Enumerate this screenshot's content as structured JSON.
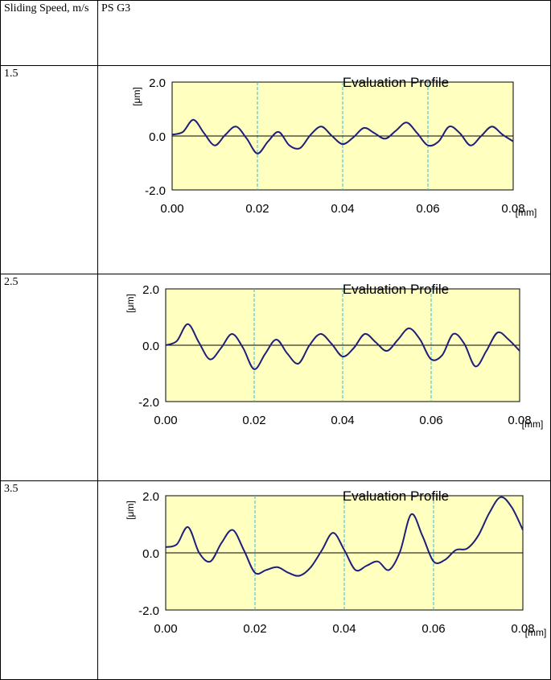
{
  "table": {
    "header_left": "Sliding Speed, m/s",
    "header_right": "PS G3",
    "rows": [
      {
        "speed": "1.5"
      },
      {
        "speed": "2.5"
      },
      {
        "speed": "3.5"
      }
    ]
  },
  "chart_data": [
    {
      "type": "line",
      "title": "Evaluation Profile",
      "ylabel": "[μm]",
      "xlabel": "[mm]",
      "xlim": [
        0,
        0.08
      ],
      "ylim": [
        -2.0,
        2.0
      ],
      "xticks": [
        "0.00",
        "0.02",
        "0.04",
        "0.06",
        "0.08"
      ],
      "yticks": [
        "2.0",
        "0.0",
        "-2.0"
      ],
      "gridlines_x": [
        0.02,
        0.04,
        0.06
      ],
      "series": [
        {
          "color": "#1f1f7a",
          "x": [
            0.0,
            0.0025,
            0.005,
            0.0075,
            0.01,
            0.0125,
            0.015,
            0.0175,
            0.02,
            0.0225,
            0.025,
            0.0275,
            0.03,
            0.0325,
            0.035,
            0.0375,
            0.04,
            0.0425,
            0.045,
            0.0475,
            0.05,
            0.0525,
            0.055,
            0.0575,
            0.06,
            0.0625,
            0.065,
            0.0675,
            0.07,
            0.0725,
            0.075,
            0.0775,
            0.08
          ],
          "y": [
            0.05,
            0.15,
            0.6,
            0.1,
            -0.35,
            0.05,
            0.35,
            -0.1,
            -0.65,
            -0.2,
            0.15,
            -0.35,
            -0.45,
            0.05,
            0.35,
            0.0,
            -0.3,
            -0.05,
            0.3,
            0.1,
            -0.1,
            0.2,
            0.5,
            0.1,
            -0.35,
            -0.2,
            0.35,
            0.1,
            -0.35,
            0.0,
            0.35,
            0.05,
            -0.2
          ]
        }
      ]
    },
    {
      "type": "line",
      "title": "Evaluation Profile",
      "ylabel": "[μm]",
      "xlabel": "[mm]",
      "xlim": [
        0,
        0.08
      ],
      "ylim": [
        -2.0,
        2.0
      ],
      "xticks": [
        "0.00",
        "0.02",
        "0.04",
        "0.06",
        "0.08"
      ],
      "yticks": [
        "2.0",
        "0.0",
        "-2.0"
      ],
      "gridlines_x": [
        0.02,
        0.04,
        0.06
      ],
      "series": [
        {
          "color": "#1f1f7a",
          "x": [
            0.0,
            0.0025,
            0.005,
            0.0075,
            0.01,
            0.0125,
            0.015,
            0.0175,
            0.02,
            0.0225,
            0.025,
            0.0275,
            0.03,
            0.0325,
            0.035,
            0.0375,
            0.04,
            0.0425,
            0.045,
            0.0475,
            0.05,
            0.0525,
            0.055,
            0.0575,
            0.06,
            0.0625,
            0.065,
            0.0675,
            0.07,
            0.0725,
            0.075,
            0.0775,
            0.08
          ],
          "y": [
            0.0,
            0.15,
            0.75,
            0.1,
            -0.5,
            -0.1,
            0.4,
            -0.1,
            -0.85,
            -0.3,
            0.2,
            -0.3,
            -0.65,
            0.0,
            0.4,
            0.05,
            -0.4,
            -0.1,
            0.4,
            0.1,
            -0.2,
            0.2,
            0.6,
            0.2,
            -0.5,
            -0.35,
            0.4,
            0.05,
            -0.75,
            -0.2,
            0.45,
            0.2,
            -0.2
          ]
        }
      ]
    },
    {
      "type": "line",
      "title": "Evaluation Profile",
      "ylabel": "[μm]",
      "xlabel": "[mm]",
      "xlim": [
        0,
        0.08
      ],
      "ylim": [
        -2.0,
        2.0
      ],
      "xticks": [
        "0.00",
        "0.02",
        "0.04",
        "0.06",
        "0.08"
      ],
      "yticks": [
        "2.0",
        "0.0",
        "-2.0"
      ],
      "gridlines_x": [
        0.02,
        0.04,
        0.06
      ],
      "series": [
        {
          "color": "#1f1f7a",
          "x": [
            0.0,
            0.0025,
            0.005,
            0.0075,
            0.01,
            0.0125,
            0.015,
            0.0175,
            0.02,
            0.0225,
            0.025,
            0.0275,
            0.03,
            0.0325,
            0.035,
            0.0375,
            0.04,
            0.0425,
            0.045,
            0.0475,
            0.05,
            0.0525,
            0.055,
            0.0575,
            0.06,
            0.0625,
            0.065,
            0.0675,
            0.07,
            0.0725,
            0.075,
            0.0775,
            0.08
          ],
          "y": [
            0.2,
            0.3,
            0.9,
            0.0,
            -0.3,
            0.35,
            0.8,
            0.1,
            -0.7,
            -0.6,
            -0.5,
            -0.7,
            -0.8,
            -0.5,
            0.1,
            0.7,
            0.1,
            -0.6,
            -0.45,
            -0.3,
            -0.6,
            0.05,
            1.35,
            0.6,
            -0.3,
            -0.25,
            0.1,
            0.15,
            0.6,
            1.4,
            1.95,
            1.6,
            0.8
          ]
        }
      ]
    }
  ]
}
